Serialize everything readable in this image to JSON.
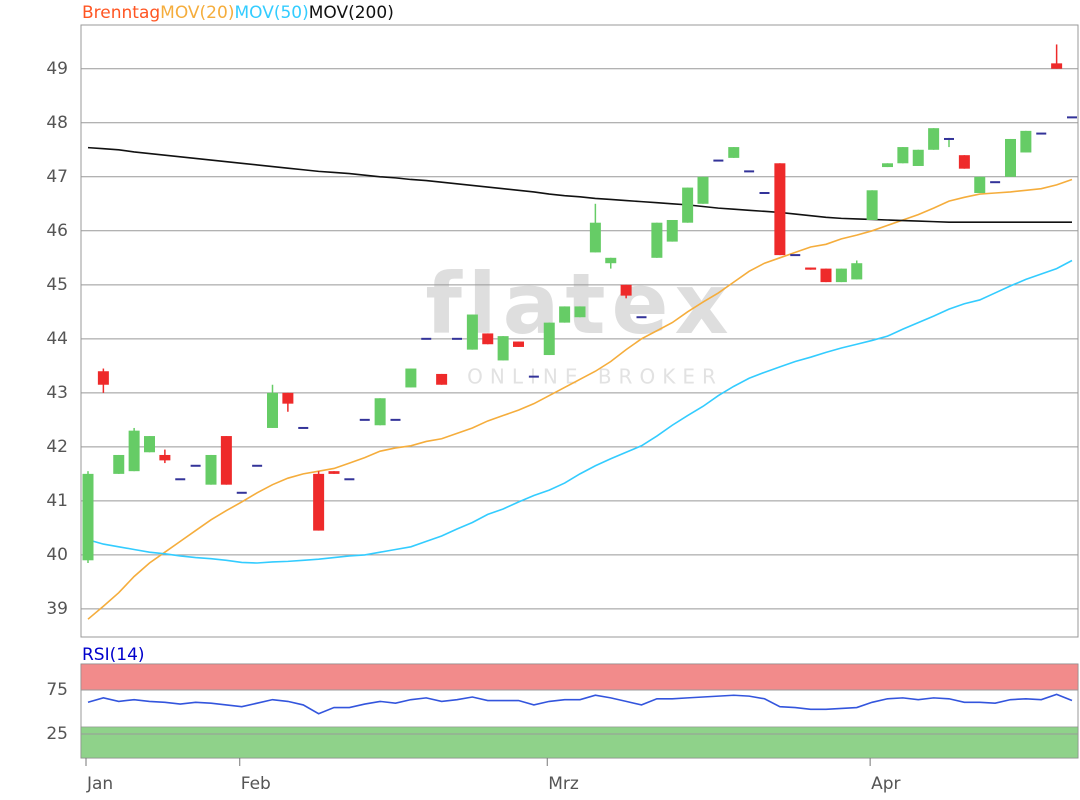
{
  "chart_data": [
    {
      "type": "candlestick",
      "name": "Brenntag",
      "name_color": "#ff5522",
      "watermark": "flatex",
      "watermark_subtitle": "ONLINE BROKER",
      "categories": [
        "Jan",
        null,
        null,
        null,
        null,
        null,
        null,
        null,
        null,
        null,
        "Feb",
        null,
        null,
        null,
        null,
        null,
        null,
        null,
        null,
        null,
        null,
        null,
        null,
        null,
        null,
        null,
        null,
        null,
        null,
        null,
        "Mrz",
        null,
        null,
        null,
        null,
        null,
        null,
        null,
        null,
        null,
        null,
        null,
        null,
        null,
        null,
        null,
        null,
        null,
        null,
        null,
        null,
        "Apr",
        null,
        null,
        null,
        null,
        null,
        null,
        null,
        null,
        null,
        null,
        null,
        null,
        null
      ],
      "open": [
        39.9,
        43.4,
        41.5,
        41.55,
        41.9,
        41.85,
        41.4,
        41.65,
        41.3,
        42.2,
        41.15,
        41.65,
        42.35,
        43.0,
        42.35,
        41.5,
        41.55,
        41.4,
        42.5,
        42.4,
        42.5,
        43.1,
        44.0,
        43.35,
        44.0,
        43.8,
        44.1,
        43.6,
        43.95,
        43.3,
        43.7,
        44.3,
        44.4,
        45.6,
        45.4,
        45.0,
        44.4,
        45.5,
        45.8,
        46.15,
        46.5,
        47.3,
        47.35,
        47.1,
        46.7,
        47.25,
        45.55,
        45.32,
        45.3,
        45.05,
        45.1,
        46.2,
        47.18,
        47.25,
        47.2,
        47.5,
        47.7,
        47.4,
        46.7,
        46.9,
        47.0,
        47.45,
        47.8,
        49.1,
        48.1
      ],
      "high": [
        41.55,
        43.45,
        41.85,
        42.35,
        42.2,
        41.95,
        41.4,
        41.65,
        41.85,
        42.2,
        41.15,
        41.65,
        43.15,
        43.0,
        42.35,
        41.55,
        41.55,
        41.4,
        42.5,
        42.9,
        42.5,
        43.45,
        44.0,
        43.35,
        44.0,
        44.45,
        44.1,
        44.05,
        43.95,
        43.3,
        44.3,
        44.6,
        44.6,
        46.5,
        45.5,
        45.0,
        44.4,
        46.15,
        46.2,
        46.8,
        47.0,
        47.3,
        47.55,
        47.1,
        46.7,
        47.25,
        45.55,
        45.32,
        45.3,
        45.3,
        45.45,
        46.75,
        47.25,
        47.55,
        47.5,
        47.9,
        47.72,
        47.4,
        47.0,
        46.9,
        47.7,
        47.85,
        47.8,
        49.45,
        48.1
      ],
      "low": [
        39.85,
        43.0,
        41.5,
        41.55,
        41.9,
        41.7,
        41.4,
        41.65,
        41.3,
        41.3,
        41.15,
        41.65,
        42.35,
        42.65,
        42.35,
        40.45,
        41.5,
        41.4,
        42.5,
        42.4,
        42.5,
        43.1,
        44.0,
        43.15,
        44.0,
        43.8,
        43.9,
        43.6,
        43.85,
        43.3,
        43.7,
        44.3,
        44.4,
        45.6,
        45.3,
        44.75,
        44.4,
        45.5,
        45.8,
        46.15,
        46.5,
        47.3,
        47.35,
        47.1,
        46.7,
        45.55,
        45.55,
        45.28,
        45.05,
        45.05,
        45.1,
        46.2,
        47.18,
        47.25,
        47.2,
        47.5,
        47.55,
        47.15,
        46.7,
        46.9,
        47.0,
        47.45,
        47.8,
        49.0,
        48.1
      ],
      "close": [
        41.5,
        43.15,
        41.85,
        42.3,
        42.2,
        41.75,
        41.4,
        41.65,
        41.85,
        41.3,
        41.15,
        41.65,
        43.0,
        42.8,
        42.35,
        40.45,
        41.5,
        41.4,
        42.5,
        42.9,
        42.5,
        43.45,
        44.0,
        43.15,
        44.0,
        44.45,
        43.9,
        44.05,
        43.85,
        43.3,
        44.3,
        44.6,
        44.6,
        46.15,
        45.5,
        44.8,
        44.4,
        46.15,
        46.2,
        46.8,
        47.0,
        47.3,
        47.55,
        47.1,
        46.7,
        45.55,
        45.55,
        45.28,
        45.05,
        45.3,
        45.4,
        46.75,
        47.25,
        47.55,
        47.5,
        47.9,
        47.7,
        47.15,
        47.0,
        46.9,
        47.7,
        47.85,
        47.8,
        49.0,
        48.1
      ],
      "up_color": "#66cc66",
      "down_color": "#ee2a2a",
      "doji_color": "#333399",
      "overlays": [
        {
          "name": "MOV(20)",
          "color": "#f5ad3c",
          "values": [
            38.81,
            39.05,
            39.3,
            39.6,
            39.85,
            40.05,
            40.25,
            40.45,
            40.65,
            40.82,
            40.98,
            41.15,
            41.3,
            41.42,
            41.5,
            41.55,
            41.6,
            41.7,
            41.8,
            41.92,
            41.98,
            42.02,
            42.1,
            42.15,
            42.25,
            42.35,
            42.48,
            42.58,
            42.68,
            42.8,
            42.95,
            43.1,
            43.25,
            43.4,
            43.58,
            43.8,
            44.0,
            44.15,
            44.3,
            44.5,
            44.68,
            44.85,
            45.05,
            45.25,
            45.4,
            45.5,
            45.6,
            45.7,
            45.75,
            45.85,
            45.92,
            46.0,
            46.1,
            46.2,
            46.3,
            46.42,
            46.55,
            46.62,
            46.68,
            46.7,
            46.72,
            46.75,
            46.78,
            46.85,
            46.95
          ]
        },
        {
          "name": "MOV(50)",
          "color": "#33ccff",
          "values": [
            40.28,
            40.2,
            40.15,
            40.1,
            40.05,
            40.02,
            39.98,
            39.95,
            39.93,
            39.9,
            39.86,
            39.85,
            39.87,
            39.88,
            39.9,
            39.92,
            39.95,
            39.98,
            40.0,
            40.05,
            40.1,
            40.15,
            40.25,
            40.35,
            40.48,
            40.6,
            40.75,
            40.85,
            40.98,
            41.1,
            41.2,
            41.33,
            41.5,
            41.65,
            41.78,
            41.9,
            42.02,
            42.2,
            42.4,
            42.58,
            42.75,
            42.95,
            43.12,
            43.27,
            43.38,
            43.48,
            43.58,
            43.66,
            43.75,
            43.83,
            43.9,
            43.97,
            44.05,
            44.18,
            44.3,
            44.42,
            44.55,
            44.65,
            44.72,
            44.85,
            44.98,
            45.1,
            45.2,
            45.3,
            45.45
          ]
        },
        {
          "name": "MOV(200)",
          "color": "#111111",
          "values": [
            47.54,
            47.52,
            47.5,
            47.46,
            47.43,
            47.4,
            47.37,
            47.34,
            47.31,
            47.28,
            47.25,
            47.22,
            47.19,
            47.16,
            47.13,
            47.1,
            47.08,
            47.06,
            47.03,
            47.0,
            46.98,
            46.95,
            46.93,
            46.9,
            46.87,
            46.84,
            46.81,
            46.78,
            46.75,
            46.72,
            46.68,
            46.65,
            46.63,
            46.6,
            46.58,
            46.56,
            46.54,
            46.52,
            46.5,
            46.48,
            46.45,
            46.42,
            46.4,
            46.38,
            46.36,
            46.34,
            46.31,
            46.28,
            46.25,
            46.23,
            46.22,
            46.21,
            46.2,
            46.19,
            46.18,
            46.17,
            46.16,
            46.16,
            46.16,
            46.16,
            46.16,
            46.16,
            46.16,
            46.16,
            46.16
          ]
        }
      ],
      "ylim": [
        38.48,
        49.81
      ],
      "yticks": [
        39,
        40,
        41,
        42,
        43,
        44,
        45,
        46,
        47,
        48,
        49
      ],
      "grid": true
    },
    {
      "type": "line",
      "title": "RSI(14)",
      "title_color": "#0000cc",
      "color": "#3355dd",
      "values": [
        61,
        66,
        62,
        64,
        62,
        61,
        59,
        61,
        60,
        58,
        56,
        60,
        64,
        62,
        58,
        48,
        55,
        55,
        59,
        62,
        60,
        64,
        66,
        62,
        64,
        67,
        63,
        63,
        63,
        58,
        62,
        64,
        64,
        69,
        66,
        62,
        58,
        65,
        65,
        66,
        67,
        68,
        69,
        68,
        65,
        56,
        55,
        53,
        53,
        54,
        55,
        61,
        65,
        66,
        64,
        66,
        65,
        61,
        61,
        60,
        64,
        65,
        64,
        70,
        63
      ],
      "bands": [
        {
          "from": 75,
          "to": 104.5,
          "color": "#f28b8b"
        },
        {
          "from": -2.3,
          "to": 33,
          "color": "#8fd28a"
        }
      ],
      "ylim": [
        -2.3,
        104.5
      ],
      "yticks": [
        25,
        75
      ],
      "grid": true
    }
  ]
}
